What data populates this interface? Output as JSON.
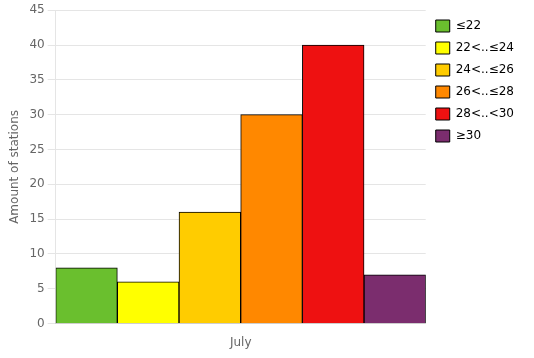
{
  "chart_data": {
    "type": "bar",
    "categories": [
      "≤22",
      "22<..≤24",
      "24<..≤26",
      "26<..≤28",
      "28<..<30",
      "≥30"
    ],
    "values": [
      8,
      6,
      16,
      30,
      40,
      7
    ],
    "colors": [
      "#6abf2e",
      "#ffff00",
      "#ffcc00",
      "#ff8800",
      "#ee1111",
      "#7b2d6e"
    ],
    "xlabel": "July",
    "ylabel": "Amount of stations",
    "ylim": [
      0,
      45
    ],
    "yticks": [
      0,
      5,
      10,
      15,
      20,
      25,
      30,
      35,
      40,
      45
    ],
    "grid": true,
    "legend": "upper right",
    "tick_labels": "y"
  }
}
